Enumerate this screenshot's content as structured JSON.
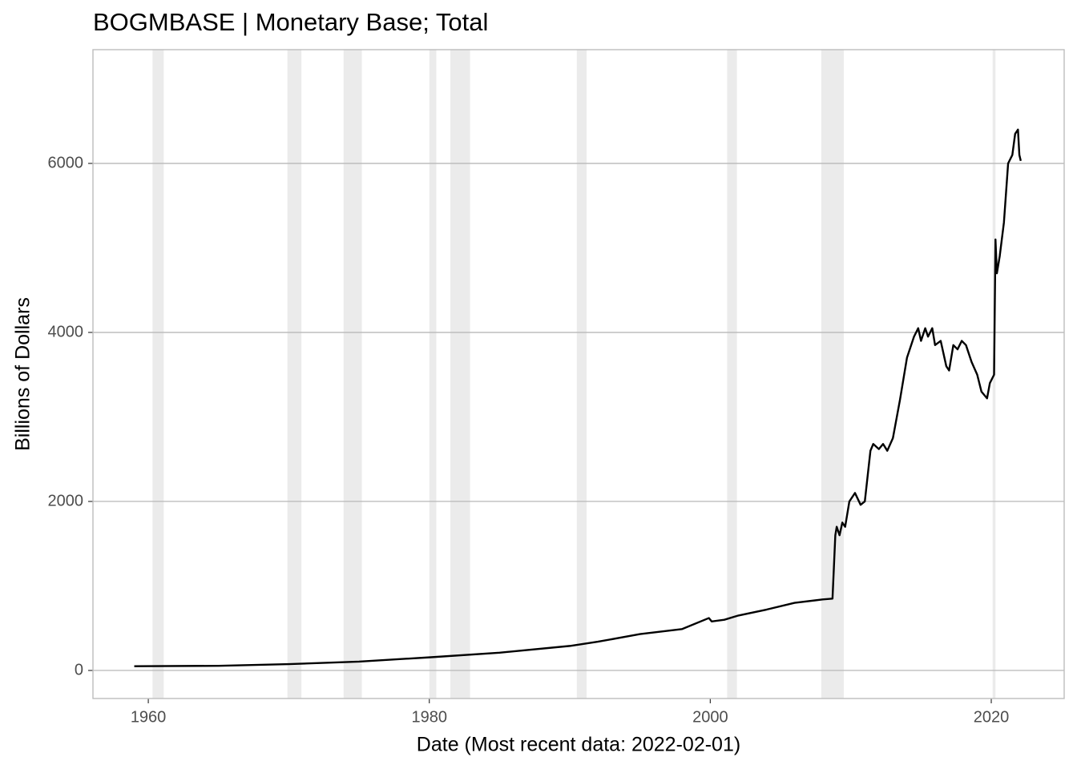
{
  "chart_data": {
    "type": "line",
    "title": "BOGMBASE | Monetary Base; Total",
    "x_label": "Date (Most recent data: 2022-02-01)",
    "y_label": "Billions of Dollars",
    "xlim": [
      1956.06,
      2025.19
    ],
    "ylim": [
      -332,
      7346
    ],
    "xticks": [
      1960,
      1980,
      2000,
      2020
    ],
    "yticks": [
      0,
      2000,
      4000,
      6000
    ],
    "grid": true,
    "recessions": [
      [
        1960.3,
        1961.1
      ],
      [
        1969.9,
        1970.9
      ],
      [
        1973.9,
        1975.2
      ],
      [
        1980.0,
        1980.5
      ],
      [
        1981.5,
        1982.9
      ],
      [
        1990.5,
        1991.2
      ],
      [
        2001.2,
        2001.9
      ],
      [
        2007.9,
        2009.5
      ],
      [
        2020.1,
        2020.3
      ]
    ],
    "recession_color": "#ebebeb",
    "x": [
      1959.0,
      1965.0,
      1970.0,
      1975.0,
      1980.0,
      1985.0,
      1990.0,
      1992.0,
      1995.0,
      1998.0,
      1999.9,
      2000.1,
      2001.0,
      2002.0,
      2004.0,
      2006.0,
      2008.0,
      2008.7,
      2008.9,
      2009.0,
      2009.2,
      2009.4,
      2009.6,
      2009.9,
      2010.3,
      2010.7,
      2011.0,
      2011.4,
      2011.6,
      2012.0,
      2012.3,
      2012.6,
      2013.0,
      2013.5,
      2014.0,
      2014.5,
      2014.8,
      2015.0,
      2015.3,
      2015.5,
      2015.8,
      2016.0,
      2016.4,
      2016.8,
      2017.0,
      2017.3,
      2017.6,
      2017.9,
      2018.2,
      2018.6,
      2019.0,
      2019.3,
      2019.7,
      2019.9,
      2020.2,
      2020.3,
      2020.4,
      2020.6,
      2020.9,
      2021.2,
      2021.5,
      2021.7,
      2021.9,
      2022.0,
      2022.1
    ],
    "series": [
      {
        "name": "BOGMBASE",
        "color": "#000000",
        "values": [
          50,
          55,
          75,
          105,
          155,
          210,
          290,
          340,
          430,
          490,
          620,
          580,
          600,
          650,
          720,
          800,
          840,
          850,
          1600,
          1700,
          1600,
          1750,
          1700,
          2000,
          2100,
          1960,
          2000,
          2600,
          2680,
          2620,
          2680,
          2600,
          2750,
          3200,
          3700,
          3950,
          4050,
          3900,
          4050,
          3950,
          4050,
          3850,
          3900,
          3600,
          3550,
          3850,
          3800,
          3900,
          3850,
          3650,
          3500,
          3300,
          3220,
          3400,
          3500,
          5100,
          4700,
          4900,
          5300,
          6000,
          6100,
          6350,
          6400,
          6100,
          6030
        ]
      }
    ]
  }
}
